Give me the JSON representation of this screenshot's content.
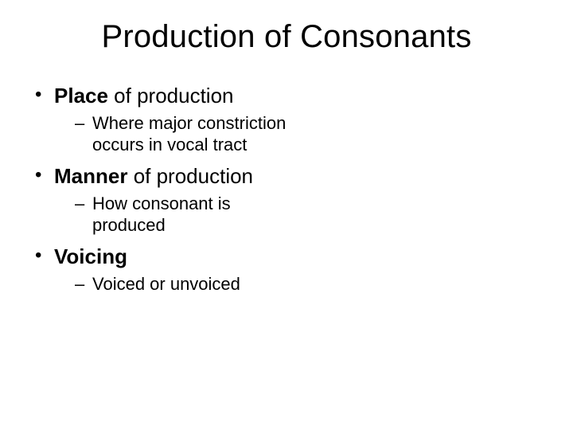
{
  "slide": {
    "title": "Production of Consonants",
    "bullets": [
      {
        "bold": "Place",
        "rest": " of production",
        "sub": "Where major constriction occurs in vocal tract"
      },
      {
        "bold": "Manner",
        "rest": " of production",
        "sub": "How consonant is produced"
      },
      {
        "bold": "Voicing",
        "rest": "",
        "sub": "Voiced or unvoiced"
      }
    ]
  },
  "colors": {
    "background": "#ffffff",
    "text": "#000000"
  },
  "typography": {
    "title_fontsize": 40,
    "level1_fontsize": 26,
    "level2_fontsize": 22,
    "font_family": "Arial"
  }
}
